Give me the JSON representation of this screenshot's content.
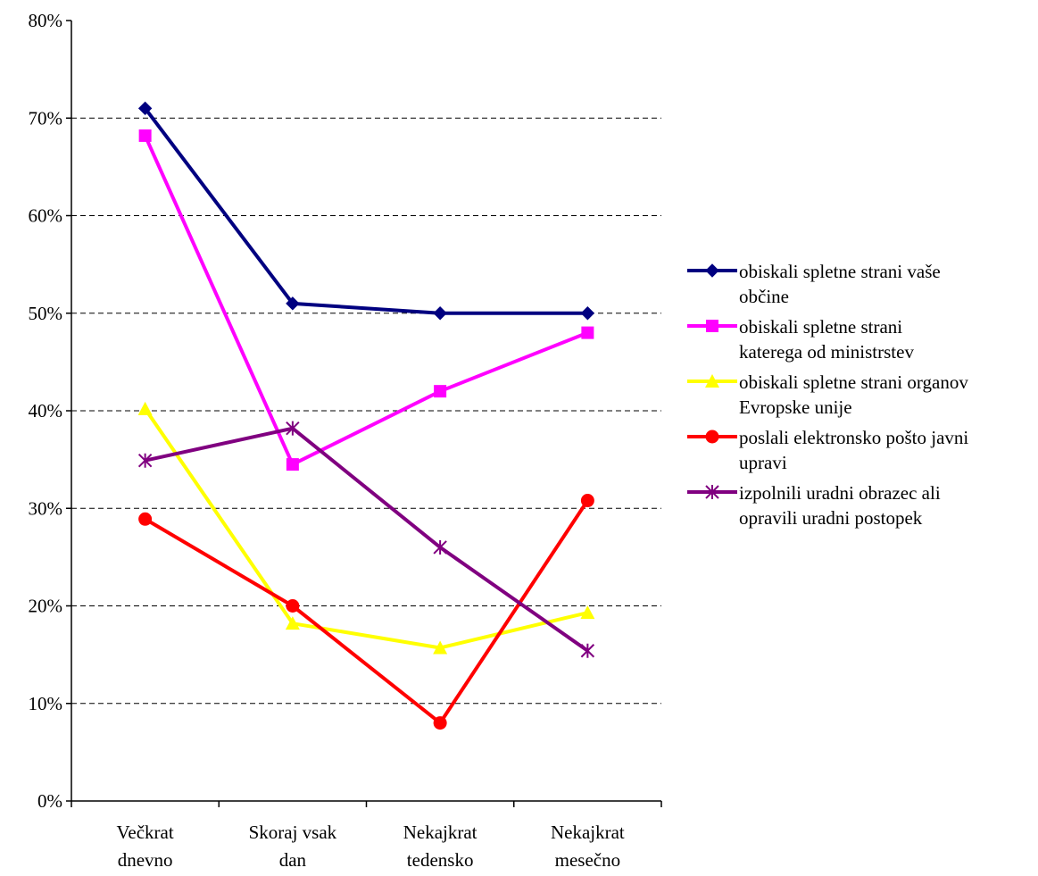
{
  "chart_data": {
    "type": "line",
    "categories": [
      "Večkrat dnevno",
      "Skoraj vsak dan",
      "Nekajkrat tedensko",
      "Nekajkrat mesečno"
    ],
    "category_lines": [
      [
        "Večkrat",
        "dnevno"
      ],
      [
        "Skoraj vsak",
        "dan"
      ],
      [
        "Nekajkrat",
        "tedensko"
      ],
      [
        "Nekajkrat",
        "mesečno"
      ]
    ],
    "y_ticks": [
      "0%",
      "10%",
      "20%",
      "30%",
      "40%",
      "50%",
      "60%",
      "70%",
      "80%"
    ],
    "ylim": [
      0,
      80
    ],
    "grid": true,
    "legend_position": "right",
    "series": [
      {
        "name": "obiskali spletne strani vaše občine",
        "name_lines": [
          "obiskali spletne strani vaše",
          "občine"
        ],
        "color": "#000080",
        "marker": "diamond",
        "values": [
          71,
          51,
          50,
          50
        ]
      },
      {
        "name": "obiskali spletne strani katerega od ministrstev",
        "name_lines": [
          "obiskali spletne strani",
          "katerega od ministrstev"
        ],
        "color": "#ff00ff",
        "marker": "square",
        "values": [
          68.2,
          34.5,
          42,
          48
        ]
      },
      {
        "name": "obiskali spletne strani organov Evropske unije",
        "name_lines": [
          "obiskali spletne strani organov",
          "Evropske unije"
        ],
        "color": "#ffff00",
        "marker": "triangle",
        "values": [
          40.2,
          18.2,
          15.7,
          19.3
        ]
      },
      {
        "name": "poslali elektronsko pošto javni upravi",
        "name_lines": [
          "poslali elektronsko pošto javni",
          "upravi"
        ],
        "color": "#ff0000",
        "marker": "circle",
        "values": [
          28.9,
          20,
          8,
          30.8
        ]
      },
      {
        "name": "izpolnili uradni obrazec ali opravili uradni postopek",
        "name_lines": [
          "izpolnili uradni obrazec ali",
          "opravili uradni postopek"
        ],
        "color": "#800080",
        "marker": "star",
        "values": [
          34.9,
          38.2,
          26,
          15.4
        ]
      }
    ]
  }
}
